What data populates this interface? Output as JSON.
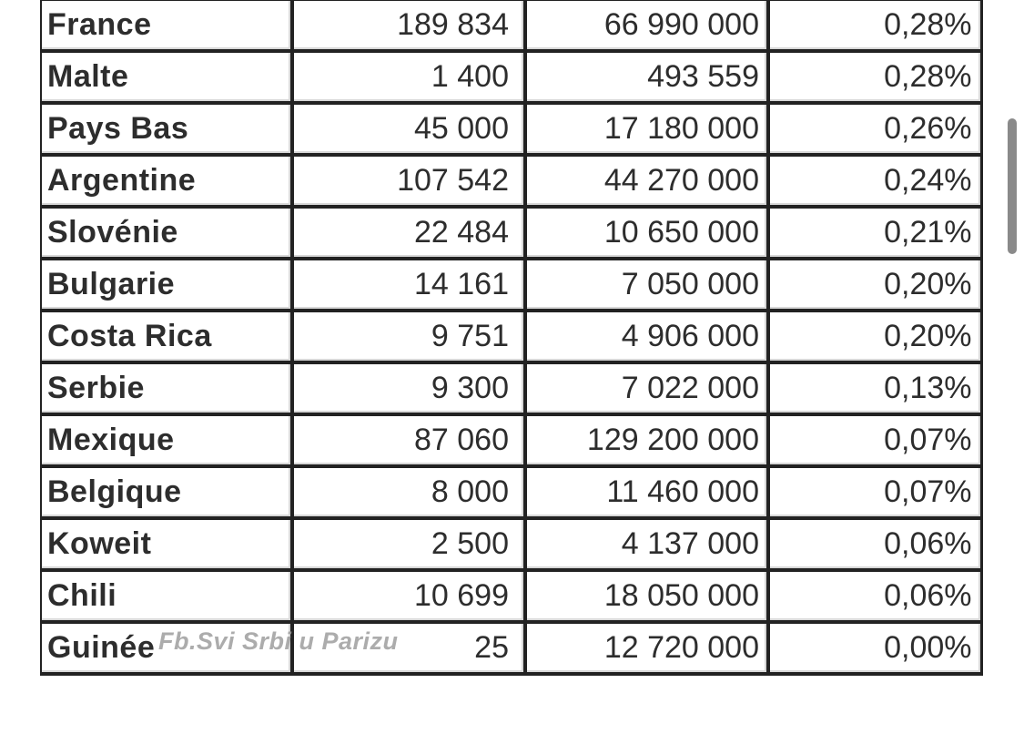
{
  "table": {
    "cell_names": [
      "country-name-cell",
      "count-cell",
      "population-cell",
      "percentage-cell"
    ],
    "rows": [
      [
        "France",
        "189 834",
        "66 990 000",
        "0,28%"
      ],
      [
        "Malte",
        "1 400",
        "493 559",
        "0,28%"
      ],
      [
        "Pays Bas",
        "45 000",
        "17 180 000",
        "0,26%"
      ],
      [
        "Argentine",
        "107 542",
        "44 270 000",
        "0,24%"
      ],
      [
        "Slovénie",
        "22 484",
        "10 650 000",
        "0,21%"
      ],
      [
        "Bulgarie",
        "14 161",
        "7 050 000",
        "0,20%"
      ],
      [
        "Costa Rica",
        "9 751",
        "4 906 000",
        "0,20%"
      ],
      [
        "Serbie",
        "9 300",
        "7 022 000",
        "0,13%"
      ],
      [
        "Mexique",
        "87 060",
        "129 200 000",
        "0,07%"
      ],
      [
        "Belgique",
        "8 000",
        "11 460 000",
        "0,07%"
      ],
      [
        "Koweit",
        "2 500",
        "4 137 000",
        "0,06%"
      ],
      [
        "Chili",
        "10 699",
        "18 050 000",
        "0,06%"
      ],
      [
        "Guinée",
        "25",
        "12 720 000",
        "0,00%"
      ]
    ]
  },
  "watermark": {
    "text": "Fb.Svi Srbi u Parizu"
  },
  "colors": {
    "text": "#2d2d2d",
    "border": "#222222",
    "border_light": "#d8d8d8",
    "watermark": "#9a9a9a",
    "scrollbar": "#8a8a8a",
    "background": "#ffffff"
  }
}
